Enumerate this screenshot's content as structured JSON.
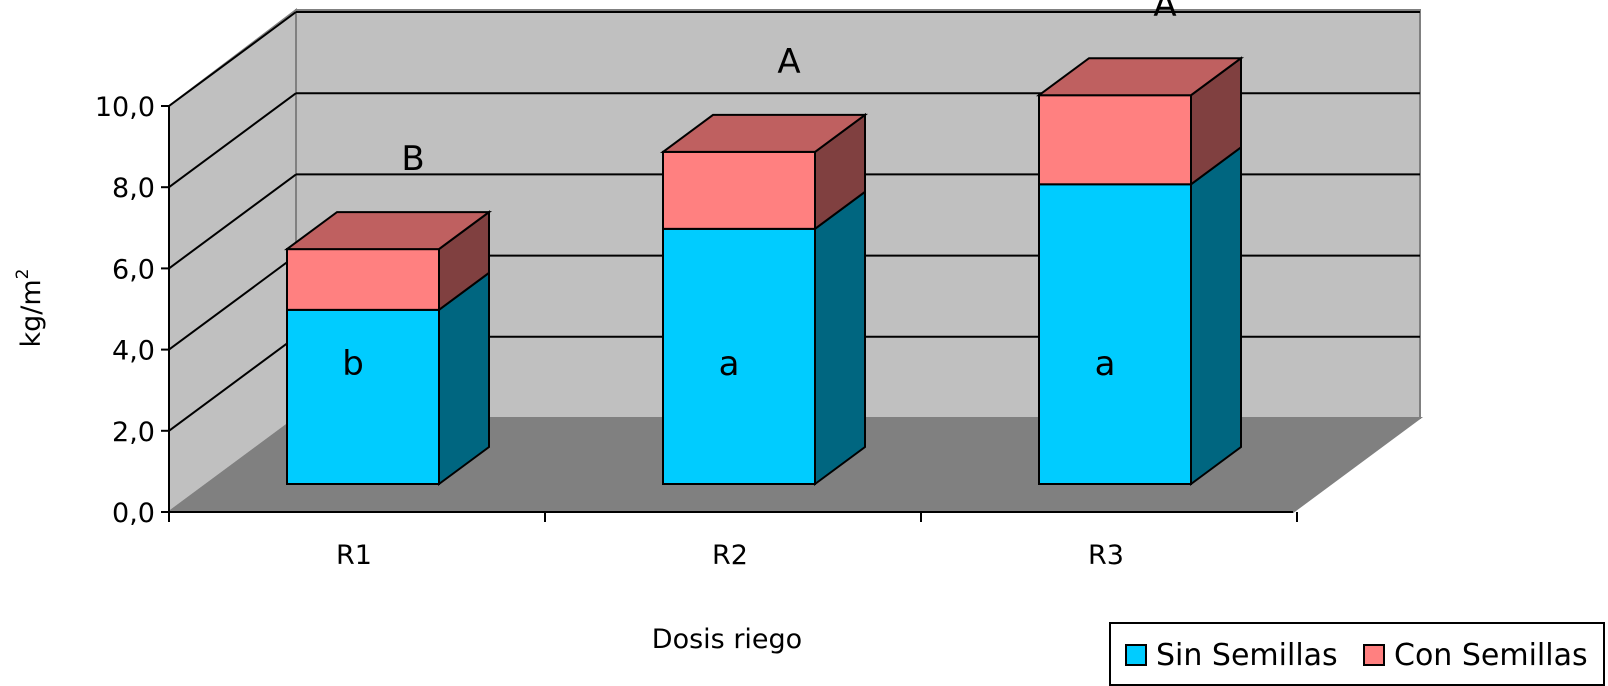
{
  "chart_data": {
    "type": "bar",
    "stacked": true,
    "three_d": true,
    "categories": [
      "R1",
      "R2",
      "R3"
    ],
    "series": [
      {
        "name": "Sin Semillas",
        "color": "#00CCFF",
        "values": [
          4.3,
          6.3,
          7.4
        ]
      },
      {
        "name": "Con Semillas",
        "color": "#FF8080",
        "values": [
          1.5,
          1.9,
          2.2
        ]
      }
    ],
    "ylim": [
      0,
      10
    ],
    "yticks": [
      "0,0",
      "2,0",
      "4,0",
      "6,0",
      "8,0",
      "10,0"
    ],
    "ytick_values": [
      0,
      2,
      4,
      6,
      8,
      10
    ],
    "ylabel": "kg/m",
    "ylabel_sup": "2",
    "xlabel": "Dosis riego",
    "grid": true,
    "legend_position": "bottom-right",
    "annotations_total": [
      "B",
      "A",
      "A"
    ],
    "annotations_base": [
      "b",
      "a",
      "a"
    ]
  }
}
